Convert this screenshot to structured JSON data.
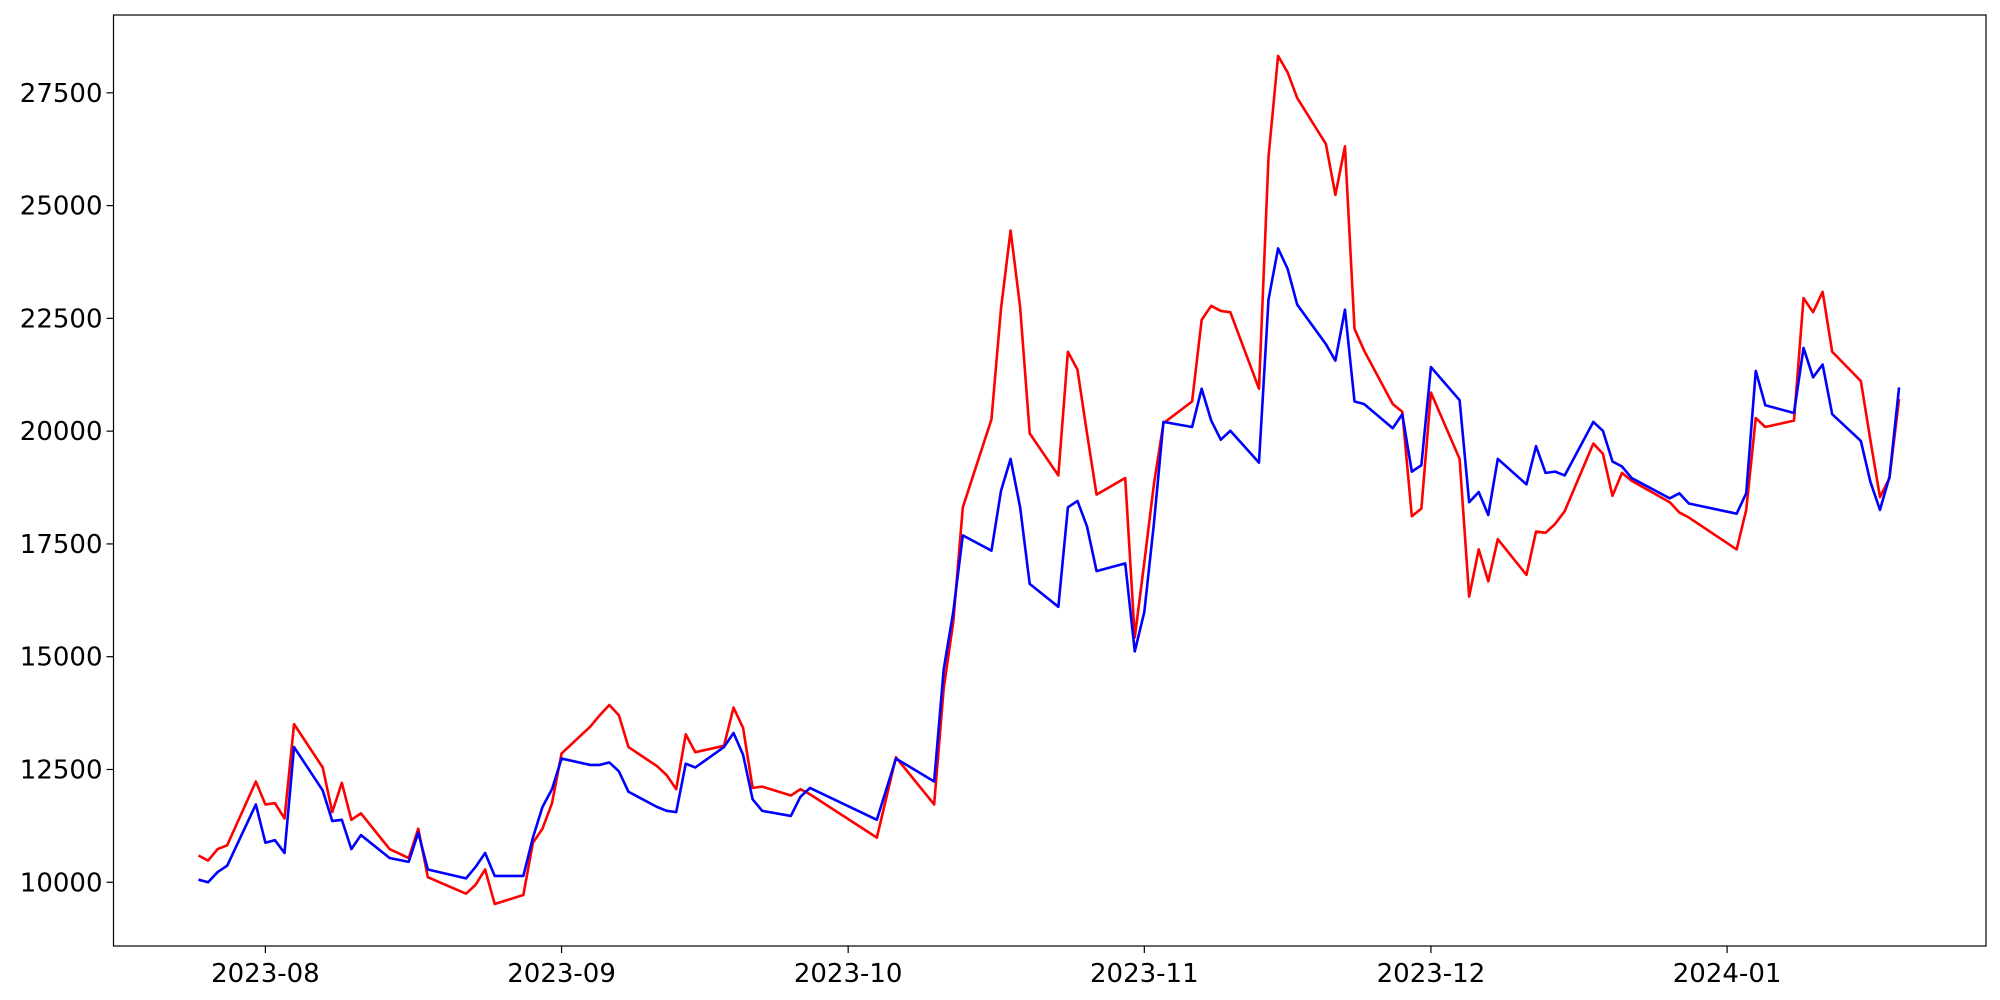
{
  "chart_data": {
    "type": "line",
    "x": [
      -7,
      -6,
      -5,
      -4,
      -1,
      0,
      1,
      2,
      3,
      6,
      7,
      8,
      9,
      10,
      13,
      15,
      16,
      17,
      21,
      22,
      23,
      24,
      27,
      28,
      29,
      30,
      31,
      34,
      35,
      36,
      37,
      38,
      41,
      42,
      43,
      44,
      45,
      48,
      49,
      50,
      51,
      52,
      55,
      56,
      57,
      64,
      66,
      70,
      71,
      72,
      73,
      76,
      77,
      78,
      79,
      80,
      83,
      84,
      85,
      86,
      87,
      90,
      91,
      92,
      93,
      94,
      97,
      98,
      99,
      100,
      101,
      104,
      105,
      106,
      107,
      108,
      111,
      112,
      113,
      114,
      115,
      118,
      119,
      120,
      121,
      122,
      125,
      126,
      127,
      128,
      129,
      132,
      133,
      134,
      135,
      136,
      139,
      140,
      141,
      142,
      143,
      147,
      148,
      149,
      154,
      155,
      156,
      157,
      160,
      161,
      162,
      163,
      164,
      167,
      168,
      169,
      170,
      171
    ],
    "series": [
      {
        "color": "#ff0000",
        "values": [
          10594,
          10480,
          10735,
          10820,
          12233,
          11725,
          11753,
          11414,
          13505,
          12544,
          11555,
          12205,
          11385,
          11527,
          10735,
          10537,
          11187,
          10113,
          9746,
          9944,
          10283,
          9519,
          9717,
          10876,
          11187,
          11753,
          12855,
          13449,
          13703,
          13930,
          13703,
          12997,
          12572,
          12375,
          12064,
          13279,
          12883,
          13025,
          13873,
          13420,
          12092,
          12120,
          11922,
          12064,
          11950,
          10989,
          12770,
          11725,
          14300,
          15767,
          18311,
          20262,
          22721,
          24446,
          22749,
          19951,
          19018,
          21760,
          21364,
          19950,
          18594,
          18962,
          15428,
          17096,
          18820,
          20177,
          20657,
          22467,
          22778,
          22665,
          22637,
          20941,
          26086,
          28319,
          27952,
          27386,
          26369,
          25237,
          26312,
          22269,
          21789,
          20601,
          20431,
          18113,
          18283,
          20855,
          19386,
          16332,
          17378,
          16672,
          17605,
          16813,
          17774,
          17746,
          17944,
          18226,
          19725,
          19499,
          18566,
          19075,
          18900,
          18424,
          18198,
          18085,
          17378,
          18255,
          20290,
          20092,
          20234,
          22948,
          22637,
          23089,
          21760,
          21110,
          19800,
          18537,
          18962,
          20714
        ]
      },
      {
        "color": "#0000ff",
        "values": [
          10057,
          10000,
          10226,
          10368,
          11725,
          10876,
          10933,
          10650,
          12997,
          12035,
          11357,
          11385,
          10735,
          11046,
          10537,
          10452,
          11102,
          10283,
          10085,
          10339,
          10650,
          10141,
          10141,
          10989,
          11668,
          12064,
          12742,
          12601,
          12601,
          12657,
          12459,
          12007,
          11668,
          11583,
          11555,
          12629,
          12544,
          12997,
          13308,
          12827,
          11838,
          11583,
          11470,
          11894,
          12092,
          11385,
          12742,
          12233,
          14721,
          15993,
          17689,
          17350,
          18679,
          19386,
          18311,
          16615,
          16106,
          18311,
          18453,
          17887,
          16898,
          17068,
          15117,
          15993,
          17944,
          20205,
          20092,
          20941,
          20234,
          19810,
          20008,
          19301,
          22919,
          24050,
          23597,
          22806,
          21930,
          21562,
          22693,
          20657,
          20601,
          20064,
          20375,
          19103,
          19244,
          21421,
          20686,
          18424,
          18650,
          18141,
          19386,
          18820,
          19668,
          19075,
          19103,
          19018,
          20205,
          20008,
          19329,
          19216,
          18962,
          18509,
          18622,
          18396,
          18170,
          18622,
          21336,
          20573,
          20403,
          21845,
          21194,
          21477,
          20375,
          19782,
          18877,
          18255,
          18990,
          20969
        ]
      }
    ],
    "xlim": [
      -15.9,
      180.1
    ],
    "xticks": [
      {
        "value": 0,
        "label": "2023-08"
      },
      {
        "value": 31,
        "label": "2023-09"
      },
      {
        "value": 61,
        "label": "2023-10"
      },
      {
        "value": 92,
        "label": "2023-11"
      },
      {
        "value": 122,
        "label": "2023-12"
      },
      {
        "value": 153,
        "label": "2024-01"
      }
    ],
    "ylim": [
      8587,
      29225
    ],
    "yticks": [
      10000,
      12500,
      15000,
      17500,
      20000,
      22500,
      25000,
      27500
    ],
    "grid": false
  }
}
